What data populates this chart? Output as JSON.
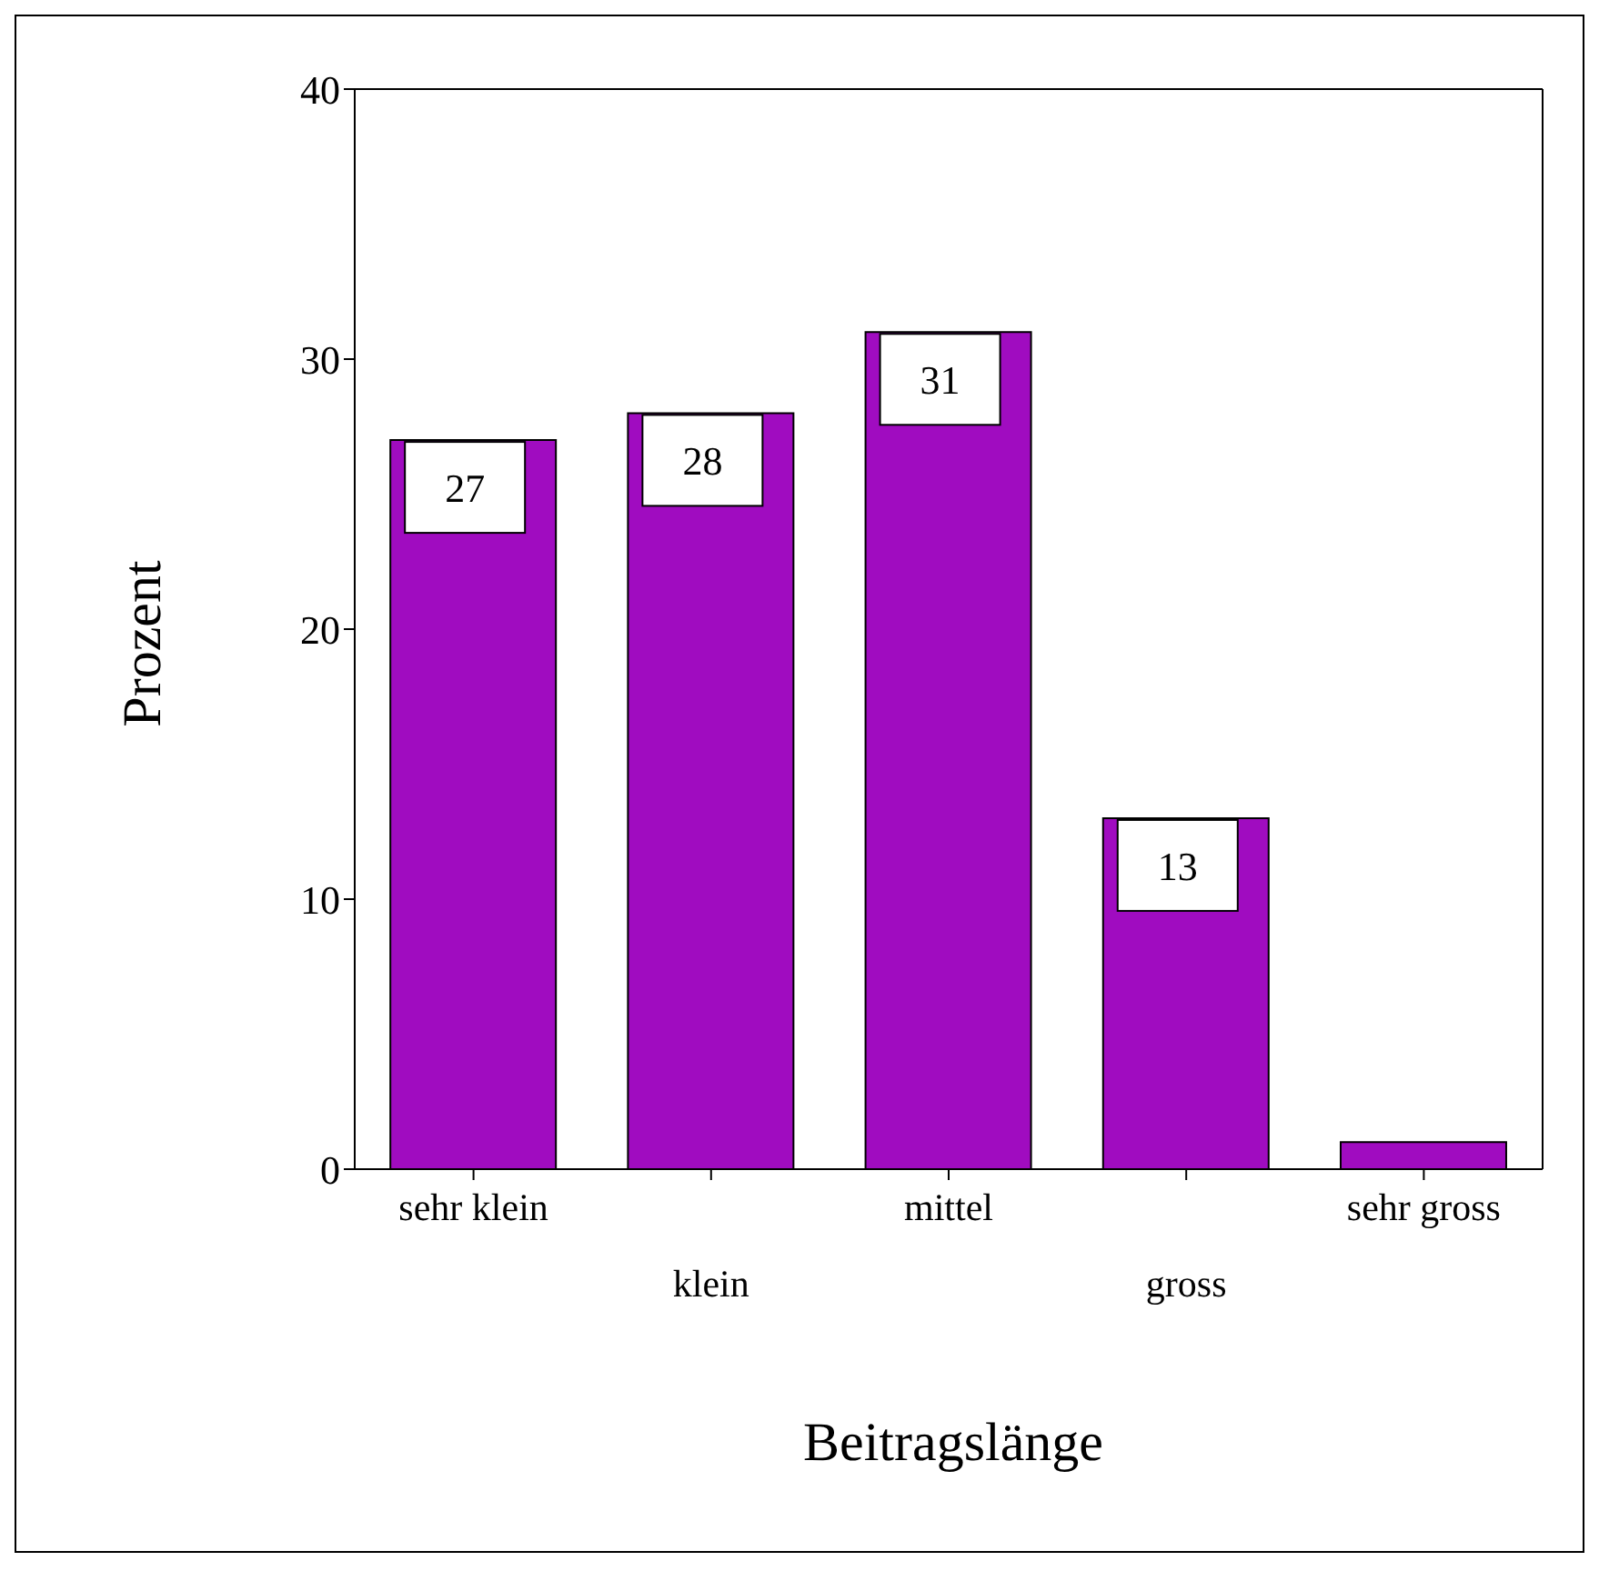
{
  "chart_data": {
    "type": "bar",
    "xlabel": "Beitragslänge",
    "ylabel": "Prozent",
    "categories": [
      "sehr klein",
      "klein",
      "mittel",
      "gross",
      "sehr gross"
    ],
    "values": [
      27,
      28,
      31,
      13,
      1
    ],
    "value_labels": [
      "27",
      "28",
      "31",
      "13",
      null
    ],
    "color": "#a00cc0",
    "ylim": [
      0,
      40
    ],
    "yticks": [
      0,
      10,
      20,
      30,
      40
    ]
  }
}
